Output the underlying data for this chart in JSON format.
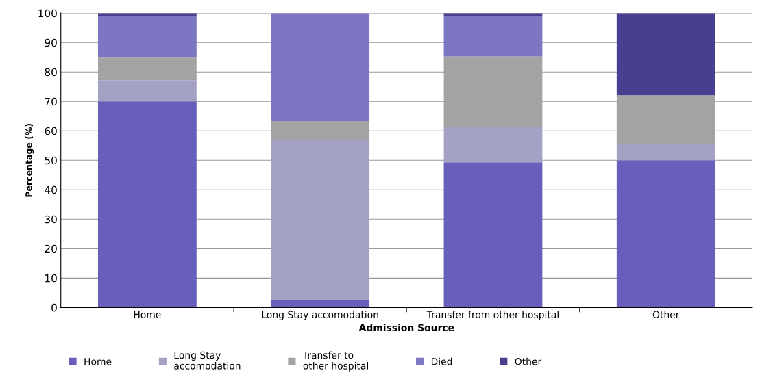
{
  "chart_data": {
    "type": "bar",
    "stacked": true,
    "xlabel": "Admission Source",
    "ylabel": "Percentage (%)",
    "categories": [
      "Home",
      "Long Stay accomodation",
      "Transfer from other hospital",
      "Other"
    ],
    "series": [
      {
        "name": "Home",
        "color": "#675fb9",
        "values": [
          70.0,
          2.6,
          49.3,
          50.0
        ]
      },
      {
        "name": "Long Stay\naccomodation",
        "color": "#a3a2c4",
        "values": [
          7.2,
          54.4,
          11.9,
          5.6
        ]
      },
      {
        "name": "Transfer to\nother hospital",
        "color": "#a3a3a3",
        "values": [
          7.7,
          6.3,
          24.1,
          16.5
        ]
      },
      {
        "name": "Died",
        "color": "#7d77c3",
        "values": [
          14.1,
          36.7,
          13.7,
          0
        ]
      },
      {
        "name": "Other",
        "color": "#473f8f",
        "values": [
          1.0,
          0,
          1.0,
          27.9
        ]
      }
    ],
    "ylim": [
      0,
      100
    ],
    "yticks": [
      0,
      10,
      20,
      30,
      40,
      50,
      60,
      70,
      80,
      90,
      100
    ],
    "grid": "y",
    "legend": "bottom"
  }
}
